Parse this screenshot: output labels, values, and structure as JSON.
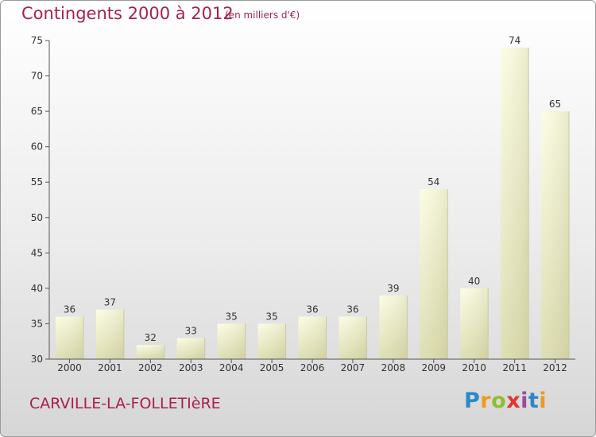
{
  "header": {
    "title": "Contingents 2000 à 2012",
    "subtitle": "(en milliers d'€)"
  },
  "footer": {
    "commune": "CARVILLE-LA-FOLLETIèRE",
    "logo_text": "Proxiti",
    "logo_icon": "proxiti-logo",
    "logo_colors": [
      "#2a88c9",
      "#f09a1a",
      "#8dbf2b",
      "#e8322e",
      "#9b4aa0",
      "#2a88c9",
      "#f09a1a"
    ]
  },
  "colors": {
    "title": "#a8204e",
    "bar_top": "#fbfce0",
    "bar_bottom": "#d9d9a8",
    "axis": "#555555"
  },
  "chart_data": {
    "type": "bar",
    "title": "Contingents 2000 à 2012",
    "subtitle": "(en milliers d'€)",
    "categories": [
      "2000",
      "2001",
      "2002",
      "2003",
      "2004",
      "2005",
      "2006",
      "2007",
      "2008",
      "2009",
      "2010",
      "2011",
      "2012"
    ],
    "values": [
      36,
      37,
      32,
      33,
      35,
      35,
      36,
      36,
      39,
      54,
      40,
      74,
      65
    ],
    "ylim": [
      30,
      75
    ],
    "yticks": [
      30,
      35,
      40,
      45,
      50,
      55,
      60,
      65,
      70,
      75
    ],
    "grid": false,
    "data_labels": true
  }
}
